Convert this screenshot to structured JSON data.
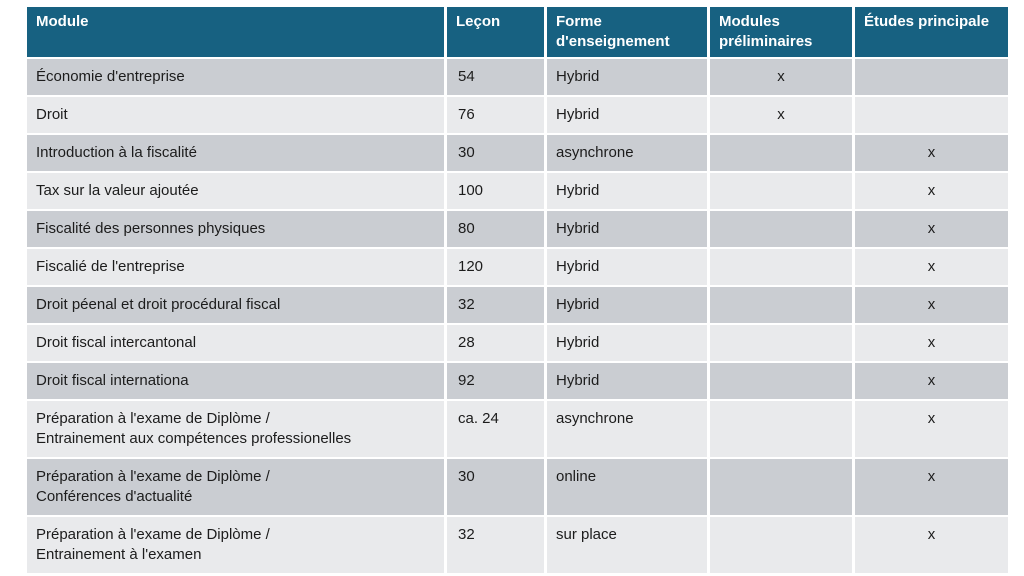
{
  "colors": {
    "header_bg": "#176181",
    "header_text": "#ffffff",
    "row_dark": "#cacdd2",
    "row_light": "#e9eaec",
    "body_text": "#1c1c1c",
    "grid_lines": "#ffffff"
  },
  "table": {
    "headers": [
      "Module",
      "Leçon",
      "Forme d'enseignement",
      "Modules préliminaires",
      "Études principale"
    ],
    "rows": [
      {
        "module": "Économie d'entreprise",
        "lecon": "54",
        "forme": "Hybrid",
        "preliminaires": "x",
        "principale": ""
      },
      {
        "module": "Droit",
        "lecon": "76",
        "forme": "Hybrid",
        "preliminaires": "x",
        "principale": ""
      },
      {
        "module": "Introduction à la fiscalité",
        "lecon": "30",
        "forme": "asynchrone",
        "preliminaires": "",
        "principale": "x"
      },
      {
        "module": "Tax sur la valeur ajoutée",
        "lecon": "100",
        "forme": "Hybrid",
        "preliminaires": "",
        "principale": "x"
      },
      {
        "module": "Fiscalité des personnes physiques",
        "lecon": "80",
        "forme": "Hybrid",
        "preliminaires": "",
        "principale": "x"
      },
      {
        "module": "Fiscalié de l'entreprise",
        "lecon": "120",
        "forme": "Hybrid",
        "preliminaires": "",
        "principale": "x"
      },
      {
        "module": "Droit péenal et droit procédural fiscal",
        "lecon": "32",
        "forme": "Hybrid",
        "preliminaires": "",
        "principale": "x"
      },
      {
        "module": "Droit fiscal intercantonal",
        "lecon": "28",
        "forme": "Hybrid",
        "preliminaires": "",
        "principale": "x"
      },
      {
        "module": "Droit fiscal internationa",
        "lecon": "92",
        "forme": "Hybrid",
        "preliminaires": "",
        "principale": "x"
      },
      {
        "module": "Préparation à l'exame de Diplòme /\nEntrainement aux compétences professionelles",
        "lecon": "ca. 24",
        "forme": "asynchrone",
        "preliminaires": "",
        "principale": "x"
      },
      {
        "module": "Préparation à l'exame de Diplòme /\nConférences d'actualité",
        "lecon": "30",
        "forme": "online",
        "preliminaires": "",
        "principale": "x"
      },
      {
        "module": "Préparation à l'exame de Diplòme /\nEntrainement à l'examen",
        "lecon": "32",
        "forme": "sur place",
        "preliminaires": "",
        "principale": "x"
      }
    ]
  }
}
